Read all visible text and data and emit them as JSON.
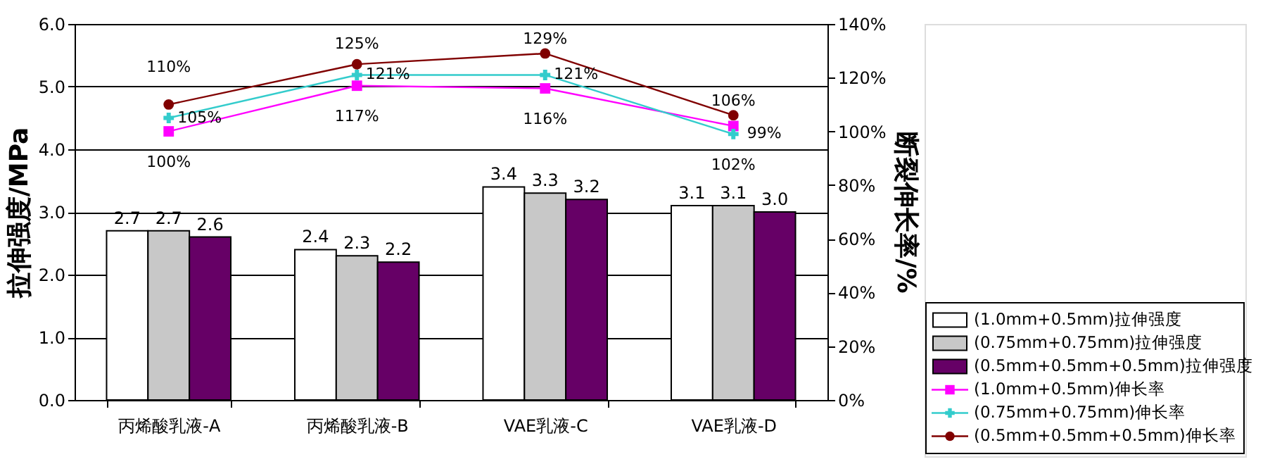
{
  "chart_data": {
    "type": "bar",
    "categories": [
      "丙烯酸乳液-A",
      "丙烯酸乳液-B",
      "VAE乳液-C",
      "VAE乳液-D"
    ],
    "ylabel": "拉伸强度/MPa",
    "y2label": "断裂伸长率/%",
    "ylim": [
      0,
      6
    ],
    "yticks": [
      {
        "value": 0,
        "label": "0.0"
      },
      {
        "value": 1,
        "label": "1.0"
      },
      {
        "value": 2,
        "label": "2.0"
      },
      {
        "value": 3,
        "label": "3.0"
      },
      {
        "value": 4,
        "label": "4.0"
      },
      {
        "value": 5,
        "label": "5.0"
      },
      {
        "value": 6,
        "label": "6.0"
      }
    ],
    "y2lim": [
      0,
      140
    ],
    "y2ticks": [
      {
        "value": 0,
        "label": "0%"
      },
      {
        "value": 20,
        "label": "20%"
      },
      {
        "value": 40,
        "label": "40%"
      },
      {
        "value": 60,
        "label": "60%"
      },
      {
        "value": 80,
        "label": "80%"
      },
      {
        "value": 100,
        "label": "100%"
      },
      {
        "value": 120,
        "label": "120%"
      },
      {
        "value": 140,
        "label": "140%"
      }
    ],
    "grid": "y",
    "legend": "bottom right",
    "series": [
      {
        "name": "(1.0mm+0.5mm)拉伸强度",
        "color": "#ffffff",
        "values": [
          2.7,
          2.4,
          3.4,
          3.1
        ],
        "value_labels": [
          "2.7",
          "2.4",
          "3.4",
          "3.1"
        ]
      },
      {
        "name": "(0.75mm+0.75mm)拉伸强度",
        "color": "#c8c8c8",
        "values": [
          2.7,
          2.3,
          3.3,
          3.1
        ],
        "value_labels": [
          "2.7",
          "2.3",
          "3.3",
          "3.1"
        ]
      },
      {
        "name": "(0.5mm+0.5mm+0.5mm)拉伸强度",
        "color": "#660066",
        "values": [
          2.6,
          2.2,
          3.2,
          3.0
        ],
        "value_labels": [
          "2.6",
          "2.2",
          "3.2",
          "3.0"
        ]
      },
      {
        "name": "(1.0mm+0.5mm)伸长率",
        "type": "line",
        "axis": "y2",
        "marker": "square",
        "color": "#ff00ff",
        "values": [
          100,
          117,
          116,
          102
        ],
        "value_labels": [
          "100%",
          "117%",
          "116%",
          "102%"
        ]
      },
      {
        "name": "(0.75mm+0.75mm)伸长率",
        "type": "line",
        "axis": "y2",
        "marker": "cross",
        "color": "#33cccc",
        "values": [
          105,
          121,
          121,
          99
        ],
        "value_labels": [
          "105%",
          "121%",
          "121%",
          "99%"
        ]
      },
      {
        "name": "(0.5mm+0.5mm+0.5mm)伸长率",
        "type": "line",
        "axis": "y2",
        "marker": "circle",
        "color": "#800000",
        "values": [
          110,
          125,
          129,
          106
        ],
        "value_labels": [
          "110%",
          "125%",
          "129%",
          "106%"
        ]
      }
    ]
  }
}
